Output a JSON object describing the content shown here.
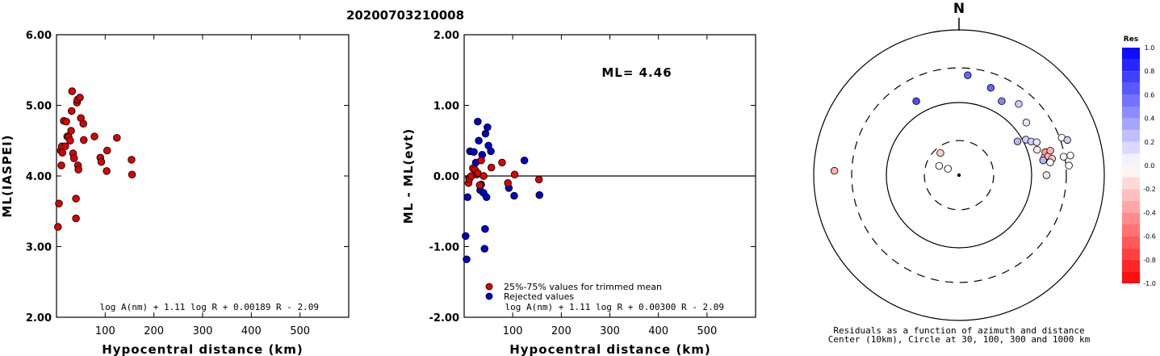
{
  "event_title": "20200703210008",
  "chart_data": [
    {
      "type": "scatter",
      "ylabel": "ML(IASPEI)",
      "xlabel": "Hypocentral distance (km)",
      "xlim": [
        0,
        600
      ],
      "ylim": [
        2.0,
        6.0
      ],
      "x_ticks": [
        "100",
        "200",
        "300",
        "400",
        "500"
      ],
      "x_tick_values": [
        100,
        200,
        300,
        400,
        500
      ],
      "y_ticks": [
        "2.00",
        "3.00",
        "4.00",
        "5.00",
        "6.00"
      ],
      "y_tick_values": [
        2,
        3,
        4,
        5,
        6
      ],
      "formula": "log A(nm) + 1.11 log R + 0.00189 R - 2.09",
      "point_color": "#dd0000",
      "points": [
        {
          "x": 3,
          "y": 3.28
        },
        {
          "x": 5,
          "y": 3.61
        },
        {
          "x": 9,
          "y": 4.36
        },
        {
          "x": 10,
          "y": 4.15
        },
        {
          "x": 11,
          "y": 4.42
        },
        {
          "x": 12,
          "y": 4.33
        },
        {
          "x": 15,
          "y": 4.78
        },
        {
          "x": 18,
          "y": 4.42
        },
        {
          "x": 20,
          "y": 4.77
        },
        {
          "x": 22,
          "y": 4.56
        },
        {
          "x": 25,
          "y": 4.55
        },
        {
          "x": 28,
          "y": 4.5
        },
        {
          "x": 30,
          "y": 4.64
        },
        {
          "x": 31,
          "y": 4.92
        },
        {
          "x": 32,
          "y": 5.2
        },
        {
          "x": 34,
          "y": 4.32
        },
        {
          "x": 36,
          "y": 4.25
        },
        {
          "x": 40,
          "y": 3.68
        },
        {
          "x": 40,
          "y": 3.4
        },
        {
          "x": 42,
          "y": 5.04
        },
        {
          "x": 43,
          "y": 5.08
        },
        {
          "x": 44,
          "y": 4.15
        },
        {
          "x": 45,
          "y": 4.09
        },
        {
          "x": 48,
          "y": 5.11
        },
        {
          "x": 50,
          "y": 4.82
        },
        {
          "x": 55,
          "y": 4.74
        },
        {
          "x": 56,
          "y": 4.51
        },
        {
          "x": 78,
          "y": 4.56
        },
        {
          "x": 90,
          "y": 4.26
        },
        {
          "x": 92,
          "y": 4.2
        },
        {
          "x": 103,
          "y": 4.07
        },
        {
          "x": 104,
          "y": 4.36
        },
        {
          "x": 124,
          "y": 4.54
        },
        {
          "x": 154,
          "y": 4.23
        },
        {
          "x": 155,
          "y": 4.02
        }
      ]
    },
    {
      "type": "scatter",
      "ylabel": "ML - ML(evt)",
      "xlabel": "Hypocentral distance (km)",
      "xlim": [
        0,
        600
      ],
      "ylim": [
        -2.0,
        2.0
      ],
      "x_ticks": [
        "100",
        "200",
        "300",
        "400",
        "500"
      ],
      "x_tick_values": [
        100,
        200,
        300,
        400,
        500
      ],
      "y_ticks": [
        "-2.00",
        "-1.00",
        "0.00",
        "1.00",
        "2.00"
      ],
      "y_tick_values": [
        -2,
        -1,
        0,
        1,
        2
      ],
      "reference_line": 0,
      "annotation": "ML= 4.46",
      "formula": "log A(nm) + 1.11 log R + 0.00300 R - 2.09",
      "legend": [
        {
          "label": "25%-75% values for trimmed mean",
          "color": "#dd0000"
        },
        {
          "label": "Rejected values",
          "color": "#0000cc"
        }
      ],
      "series": [
        {
          "name": "25%-75% values for trimmed mean",
          "color": "#dd0000",
          "points": [
            {
              "x": 9,
              "y": -0.1
            },
            {
              "x": 10,
              "y": -0.03
            },
            {
              "x": 11,
              "y": -0.04
            },
            {
              "x": 15,
              "y": 0.0
            },
            {
              "x": 18,
              "y": 0.11
            },
            {
              "x": 22,
              "y": 0.09
            },
            {
              "x": 26,
              "y": 0.02
            },
            {
              "x": 28,
              "y": 0.04
            },
            {
              "x": 32,
              "y": -0.13
            },
            {
              "x": 35,
              "y": 0.22
            },
            {
              "x": 40,
              "y": 0.0
            },
            {
              "x": 56,
              "y": 0.12
            },
            {
              "x": 78,
              "y": 0.19
            },
            {
              "x": 90,
              "y": -0.1
            },
            {
              "x": 104,
              "y": 0.02
            },
            {
              "x": 154,
              "y": -0.05
            }
          ]
        },
        {
          "name": "Rejected values",
          "color": "#0000cc",
          "points": [
            {
              "x": 3,
              "y": -0.85
            },
            {
              "x": 5,
              "y": -1.18
            },
            {
              "x": 7,
              "y": -0.3
            },
            {
              "x": 12,
              "y": 0.35
            },
            {
              "x": 20,
              "y": 0.34
            },
            {
              "x": 24,
              "y": 0.19
            },
            {
              "x": 28,
              "y": 0.77
            },
            {
              "x": 30,
              "y": 0.5
            },
            {
              "x": 33,
              "y": -0.2
            },
            {
              "x": 35,
              "y": -0.12
            },
            {
              "x": 37,
              "y": 0.3
            },
            {
              "x": 40,
              "y": -0.24
            },
            {
              "x": 42,
              "y": -1.03
            },
            {
              "x": 43,
              "y": -0.75
            },
            {
              "x": 44,
              "y": 0.6
            },
            {
              "x": 46,
              "y": -0.3
            },
            {
              "x": 48,
              "y": 0.69
            },
            {
              "x": 50,
              "y": 0.43
            },
            {
              "x": 55,
              "y": 0.35
            },
            {
              "x": 92,
              "y": -0.17
            },
            {
              "x": 103,
              "y": -0.28
            },
            {
              "x": 124,
              "y": 0.22
            },
            {
              "x": 155,
              "y": -0.27
            }
          ]
        }
      ]
    },
    {
      "type": "scatter",
      "subtype": "polar residual map",
      "north_label": "N",
      "caption_line1": "Residuals as a function of azimuth and distance",
      "caption_line2": "Center (10km), Circle at 30, 100, 300 and 1000 km",
      "colorbar": {
        "title": "Res",
        "ticks": [
          "1.0",
          "0.8",
          "0.6",
          "0.4",
          "0.2",
          "0.0",
          "-0.2",
          "-0.4",
          "-0.6",
          "-0.8",
          "-1.0"
        ],
        "tick_values": [
          1.0,
          0.8,
          0.6,
          0.4,
          0.2,
          0.0,
          -0.2,
          -0.4,
          -0.6,
          -0.8,
          -1.0
        ],
        "positive_color": "#0000ff",
        "negative_color": "#ff0000"
      },
      "center": {
        "x": 0,
        "y": 0
      },
      "circles": [
        30,
        100,
        300,
        1000
      ],
      "points": [
        {
          "azimuth": 272,
          "distance": 520,
          "res": -0.3
        },
        {
          "azimuth": 330,
          "distance": 150,
          "res": 0.7
        },
        {
          "azimuth": 5,
          "distance": 240,
          "res": 0.6
        },
        {
          "azimuth": 20,
          "distance": 190,
          "res": 0.6
        },
        {
          "azimuth": 30,
          "distance": 150,
          "res": 0.5
        },
        {
          "azimuth": 40,
          "distance": 190,
          "res": 0.2
        },
        {
          "azimuth": 52,
          "distance": 150,
          "res": 0.1
        },
        {
          "azimuth": 60,
          "distance": 85,
          "res": 0.3
        },
        {
          "azimuth": 62,
          "distance": 110,
          "res": 0.2
        },
        {
          "azimuth": 65,
          "distance": 125,
          "res": 0.2
        },
        {
          "azimuth": 67,
          "distance": 145,
          "res": 0.1
        },
        {
          "azimuth": 72,
          "distance": 135,
          "res": -0.1
        },
        {
          "azimuth": 78,
          "distance": 160,
          "res": -0.2
        },
        {
          "azimuth": 75,
          "distance": 170,
          "res": -0.4
        },
        {
          "azimuth": 78,
          "distance": 180,
          "res": -0.3
        },
        {
          "azimuth": 75,
          "distance": 200,
          "res": -0.3
        },
        {
          "azimuth": 80,
          "distance": 200,
          "res": -0.2
        },
        {
          "azimuth": 82,
          "distance": 185,
          "res": 0.0
        },
        {
          "azimuth": 80,
          "distance": 150,
          "res": 0.3
        },
        {
          "azimuth": 90,
          "distance": 160,
          "res": -0.1
        },
        {
          "azimuth": 70,
          "distance": 320,
          "res": 0.0
        },
        {
          "azimuth": 72,
          "distance": 370,
          "res": 0.2
        },
        {
          "azimuth": 80,
          "distance": 360,
          "res": 0.0
        },
        {
          "azimuth": 85,
          "distance": 330,
          "res": 0.0
        },
        {
          "azimuth": 80,
          "distance": 290,
          "res": 0.0
        },
        {
          "azimuth": 295,
          "distance": 20,
          "res": 0.0
        },
        {
          "azimuth": 300,
          "distance": 15,
          "res": 0.0
        },
        {
          "azimuth": 320,
          "distance": 25,
          "res": -0.2
        }
      ]
    }
  ]
}
